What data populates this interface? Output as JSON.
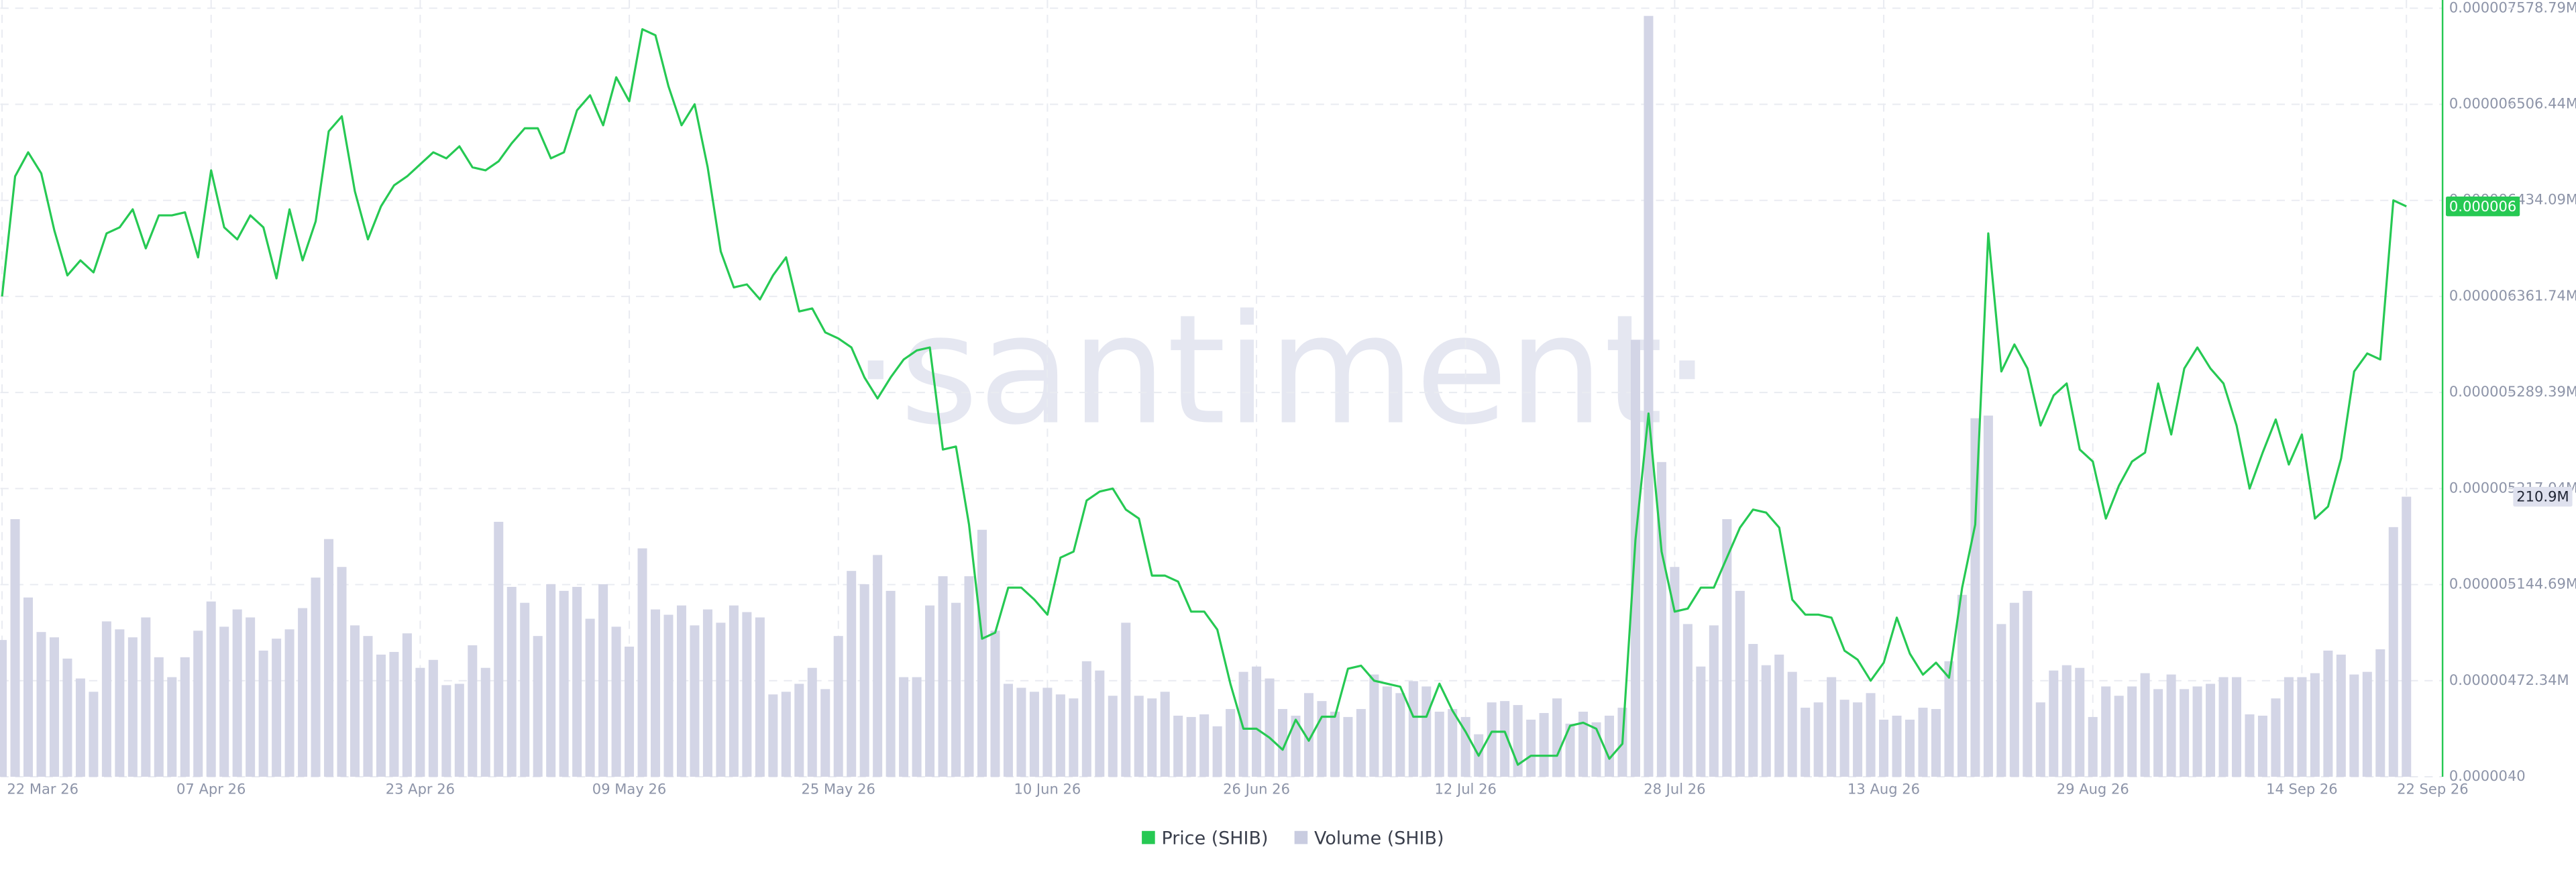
{
  "chart_data": {
    "type": "line",
    "watermark": "·santiment·",
    "x": [
      "2026-03-22",
      "2026-03-23",
      "2026-03-24",
      "2026-03-25",
      "2026-03-26",
      "2026-03-27",
      "2026-03-28",
      "2026-03-29",
      "2026-03-30",
      "2026-03-31",
      "2026-04-01",
      "2026-04-02",
      "2026-04-03",
      "2026-04-04",
      "2026-04-05",
      "2026-04-06",
      "2026-04-07",
      "2026-04-08",
      "2026-04-09",
      "2026-04-10",
      "2026-04-11",
      "2026-04-12",
      "2026-04-13",
      "2026-04-14",
      "2026-04-15",
      "2026-04-16",
      "2026-04-17",
      "2026-04-18",
      "2026-04-19",
      "2026-04-20",
      "2026-04-21",
      "2026-04-22",
      "2026-04-23",
      "2026-04-24",
      "2026-04-25",
      "2026-04-26",
      "2026-04-27",
      "2026-04-28",
      "2026-04-29",
      "2026-04-30",
      "2026-05-01",
      "2026-05-02",
      "2026-05-03",
      "2026-05-04",
      "2026-05-05",
      "2026-05-06",
      "2026-05-07",
      "2026-05-08",
      "2026-05-09",
      "2026-05-10",
      "2026-05-11",
      "2026-05-12",
      "2026-05-13",
      "2026-05-14",
      "2026-05-15",
      "2026-05-16",
      "2026-05-17",
      "2026-05-18",
      "2026-05-19",
      "2026-05-20",
      "2026-05-21",
      "2026-05-22",
      "2026-05-23",
      "2026-05-24",
      "2026-05-25",
      "2026-05-26",
      "2026-05-27",
      "2026-05-28",
      "2026-05-29",
      "2026-05-30",
      "2026-05-31",
      "2026-06-01",
      "2026-06-02",
      "2026-06-03",
      "2026-06-04",
      "2026-06-05",
      "2026-06-06",
      "2026-06-07",
      "2026-06-08",
      "2026-06-09",
      "2026-06-10",
      "2026-06-11",
      "2026-06-12",
      "2026-06-13",
      "2026-06-14",
      "2026-06-15",
      "2026-06-16",
      "2026-06-17",
      "2026-06-18",
      "2026-06-19",
      "2026-06-20",
      "2026-06-21",
      "2026-06-22",
      "2026-06-23",
      "2026-06-24",
      "2026-06-25",
      "2026-06-26",
      "2026-06-27",
      "2026-06-28",
      "2026-06-29",
      "2026-06-30",
      "2026-07-01",
      "2026-07-02",
      "2026-07-03",
      "2026-07-04",
      "2026-07-05",
      "2026-07-06",
      "2026-07-07",
      "2026-07-08",
      "2026-07-09",
      "2026-07-10",
      "2026-07-11",
      "2026-07-12",
      "2026-07-13",
      "2026-07-14",
      "2026-07-15",
      "2026-07-16",
      "2026-07-17",
      "2026-07-18",
      "2026-07-19",
      "2026-07-20",
      "2026-07-21",
      "2026-07-22",
      "2026-07-23",
      "2026-07-24",
      "2026-07-25",
      "2026-07-26",
      "2026-07-27",
      "2026-07-28",
      "2026-07-29",
      "2026-07-30",
      "2026-07-31",
      "2026-08-01",
      "2026-08-02",
      "2026-08-03",
      "2026-08-04",
      "2026-08-05",
      "2026-08-06",
      "2026-08-07",
      "2026-08-08",
      "2026-08-09",
      "2026-08-10",
      "2026-08-11",
      "2026-08-12",
      "2026-08-13",
      "2026-08-14",
      "2026-08-15",
      "2026-08-16",
      "2026-08-17",
      "2026-08-18",
      "2026-08-19",
      "2026-08-20",
      "2026-08-21",
      "2026-08-22",
      "2026-08-23",
      "2026-08-24",
      "2026-08-25",
      "2026-08-26",
      "2026-08-27",
      "2026-08-28",
      "2026-08-29",
      "2026-08-30",
      "2026-08-31",
      "2026-09-01",
      "2026-09-02",
      "2026-09-03",
      "2026-09-04",
      "2026-09-05",
      "2026-09-06",
      "2026-09-07",
      "2026-09-08",
      "2026-09-09",
      "2026-09-10",
      "2026-09-11",
      "2026-09-12",
      "2026-09-13",
      "2026-09-14",
      "2026-09-15",
      "2026-09-16",
      "2026-09-17",
      "2026-09-18",
      "2026-09-19",
      "2026-09-20",
      "2026-09-21",
      "2026-09-22"
    ],
    "xticks": [
      {
        "value": "2026-03-22",
        "label": "22 Mar 26"
      },
      {
        "value": "2026-04-07",
        "label": "07 Apr 26"
      },
      {
        "value": "2026-04-23",
        "label": "23 Apr 26"
      },
      {
        "value": "2026-05-09",
        "label": "09 May 26"
      },
      {
        "value": "2026-05-25",
        "label": "25 May 26"
      },
      {
        "value": "2026-06-10",
        "label": "10 Jun 26"
      },
      {
        "value": "2026-06-26",
        "label": "26 Jun 26"
      },
      {
        "value": "2026-07-12",
        "label": "12 Jul 26"
      },
      {
        "value": "2026-07-28",
        "label": "28 Jul 26"
      },
      {
        "value": "2026-08-13",
        "label": "13 Aug 26"
      },
      {
        "value": "2026-08-29",
        "label": "29 Aug 26"
      },
      {
        "value": "2026-09-14",
        "label": "14 Sep 26"
      },
      {
        "value": "2026-09-22",
        "label": "22 Sep 26"
      }
    ],
    "ylim": [
      4e-06,
      6.56e-06
    ],
    "yticks": [
      {
        "value": 6.56e-06,
        "label": "0.000007"
      },
      {
        "value": 6.24e-06,
        "label": "0.000006"
      },
      {
        "value": 5.92e-06,
        "label": "0.000006"
      },
      {
        "value": 5.6e-06,
        "label": "0.000006"
      },
      {
        "value": 5.28e-06,
        "label": "0.000005"
      },
      {
        "value": 4.96e-06,
        "label": "0.000005"
      },
      {
        "value": 4.64e-06,
        "label": "0.000005"
      },
      {
        "value": 4.32e-06,
        "label": "0.000004"
      },
      {
        "value": 4e-06,
        "label": "0.000004"
      }
    ],
    "y2lim": [
      0,
      578790000
    ],
    "y2ticks": [
      {
        "value": 578790000,
        "label": "578.79M"
      },
      {
        "value": 506440000,
        "label": "506.44M"
      },
      {
        "value": 434090000,
        "label": "434.09M"
      },
      {
        "value": 361740000,
        "label": "361.74M"
      },
      {
        "value": 289390000,
        "label": "289.39M"
      },
      {
        "value": 217040000,
        "label": "217.04M"
      },
      {
        "value": 144690000,
        "label": "144.69M"
      },
      {
        "value": 72340000,
        "label": "72.34M"
      },
      0
    ],
    "grid": true,
    "legend": "bottom",
    "series": [
      {
        "name": "Price (SHIB)",
        "color": "#26c953",
        "last_value_label": "0.000006",
        "values": [
          5.6e-06,
          6e-06,
          6.08e-06,
          6.01e-06,
          5.82e-06,
          5.67e-06,
          5.72e-06,
          5.68e-06,
          5.81e-06,
          5.83e-06,
          5.89e-06,
          5.76e-06,
          5.87e-06,
          5.87e-06,
          5.88e-06,
          5.73e-06,
          6.02e-06,
          5.83e-06,
          5.79e-06,
          5.87e-06,
          5.83e-06,
          5.66e-06,
          5.89e-06,
          5.72e-06,
          5.85e-06,
          6.15e-06,
          6.2e-06,
          5.95e-06,
          5.79e-06,
          5.9e-06,
          5.97e-06,
          6e-06,
          6.04e-06,
          6.08e-06,
          6.06e-06,
          6.1e-06,
          6.03e-06,
          6.02e-06,
          6.05e-06,
          6.11e-06,
          6.16e-06,
          6.16e-06,
          6.06e-06,
          6.08e-06,
          6.22e-06,
          6.27e-06,
          6.17e-06,
          6.33e-06,
          6.25e-06,
          6.49e-06,
          6.47e-06,
          6.3e-06,
          6.17e-06,
          6.24e-06,
          6.03e-06,
          5.75e-06,
          5.63e-06,
          5.64e-06,
          5.59e-06,
          5.67e-06,
          5.73e-06,
          5.55e-06,
          5.56e-06,
          5.48e-06,
          5.46e-06,
          5.43e-06,
          5.33e-06,
          5.26e-06,
          5.33e-06,
          5.39e-06,
          5.42e-06,
          5.43e-06,
          5.09e-06,
          5.1e-06,
          4.84e-06,
          4.46e-06,
          4.48e-06,
          4.63e-06,
          4.63e-06,
          4.59e-06,
          4.54e-06,
          4.73e-06,
          4.75e-06,
          4.92e-06,
          4.95e-06,
          4.96e-06,
          4.89e-06,
          4.86e-06,
          4.67e-06,
          4.67e-06,
          4.65e-06,
          4.55e-06,
          4.55e-06,
          4.49e-06,
          4.31e-06,
          4.16e-06,
          4.16e-06,
          4.13e-06,
          4.09e-06,
          4.19e-06,
          4.12e-06,
          4.2e-06,
          4.2e-06,
          4.36e-06,
          4.37e-06,
          4.32e-06,
          4.31e-06,
          4.3e-06,
          4.2e-06,
          4.2e-06,
          4.31e-06,
          4.22e-06,
          4.15e-06,
          4.07e-06,
          4.15e-06,
          4.15e-06,
          4.04e-06,
          4.07e-06,
          4.07e-06,
          4.07e-06,
          4.17e-06,
          4.18e-06,
          4.16e-06,
          4.06e-06,
          4.11e-06,
          4.79e-06,
          5.21e-06,
          4.75e-06,
          4.55e-06,
          4.56e-06,
          4.63e-06,
          4.63e-06,
          4.73e-06,
          4.83e-06,
          4.89e-06,
          4.88e-06,
          4.83e-06,
          4.59e-06,
          4.54e-06,
          4.54e-06,
          4.53e-06,
          4.42e-06,
          4.39e-06,
          4.32e-06,
          4.38e-06,
          4.53e-06,
          4.41e-06,
          4.34e-06,
          4.38e-06,
          4.33e-06,
          4.63e-06,
          4.84e-06,
          5.81e-06,
          5.35e-06,
          5.44e-06,
          5.36e-06,
          5.17e-06,
          5.27e-06,
          5.31e-06,
          5.09e-06,
          5.05e-06,
          4.86e-06,
          4.97e-06,
          5.05e-06,
          5.08e-06,
          5.31e-06,
          5.14e-06,
          5.36e-06,
          5.43e-06,
          5.36e-06,
          5.31e-06,
          5.17e-06,
          4.96e-06,
          5.08e-06,
          5.19e-06,
          5.04e-06,
          5.14e-06,
          4.86e-06,
          4.9e-06,
          5.06e-06,
          5.35e-06,
          5.41e-06,
          5.39e-06,
          5.92e-06,
          5.9e-06
        ]
      },
      {
        "name": "Volume (SHIB)",
        "color": "#d3d5e6",
        "type": "bar",
        "axis": "y2",
        "last_value_label": "210.9M",
        "values": [
          103000000.0,
          194000000.0,
          135000000.0,
          109000000.0,
          105000000.0,
          89000000.0,
          74000000.0,
          64000000.0,
          117000000.0,
          111000000.0,
          105000000.0,
          120000000.0,
          90000000.0,
          75000000.0,
          90000000.0,
          110000000.0,
          132000000.0,
          113000000.0,
          126000000.0,
          120000000.0,
          95000000.0,
          104000000.0,
          111000000.0,
          127000000.0,
          150000000.0,
          179000000.0,
          158000000.0,
          114000000.0,
          106000000.0,
          92000000.0,
          94000000.0,
          108000000.0,
          82000000.0,
          88000000.0,
          69000000.0,
          70000000.0,
          99000000.0,
          82000000.0,
          192000000.0,
          143000000.0,
          131000000.0,
          106000000.0,
          145000000.0,
          140000000.0,
          143000000.0,
          119000000.0,
          145000000.0,
          113000000.0,
          98000000.0,
          172000000.0,
          126000000.0,
          122000000.0,
          129000000.0,
          114000000.0,
          126000000.0,
          116000000.0,
          129000000.0,
          124000000.0,
          120000000.0,
          62000000.0,
          64000000.0,
          70000000.0,
          82000000.0,
          66000000.0,
          106000000.0,
          155000000.0,
          145000000.0,
          167000000.0,
          140000000.0,
          75000000.0,
          75000000.0,
          129000000.0,
          151000000.0,
          131000000.0,
          151000000.0,
          186000000.0,
          110000000.0,
          70000000.0,
          67000000.0,
          64000000.0,
          67000000.0,
          62000000.0,
          59000000.0,
          87000000.0,
          80000000.0,
          61000000.0,
          116000000.0,
          61000000.0,
          59000000.0,
          64000000.0,
          46000000.0,
          45000000.0,
          47000000.0,
          38000000.0,
          51000000.0,
          79000000.0,
          83000000.0,
          74000000.0,
          51000000.0,
          46000000.0,
          63000000.0,
          57000000.0,
          49000000.0,
          45000000.0,
          51000000.0,
          77000000.0,
          68000000.0,
          63000000.0,
          72000000.0,
          68000000.0,
          49000000.0,
          51000000.0,
          45000000.0,
          32000000.0,
          56000000.0,
          57000000.0,
          54000000.0,
          43000000.0,
          48000000.0,
          59000000.0,
          40000000.0,
          49000000.0,
          41000000.0,
          46000000.0,
          52000000.0,
          329000000.0,
          573000000.0,
          237000000.0,
          158000000.0,
          115000000.0,
          83000000.0,
          114000000.0,
          194000000.0,
          140000000.0,
          100000000.0,
          84000000.0,
          92000000.0,
          79000000.0,
          52000000.0,
          56000000.0,
          75000000.0,
          58000000.0,
          56000000.0,
          63000000.0,
          43000000.0,
          46000000.0,
          43000000.0,
          52000000.0,
          51000000.0,
          87000000.0,
          137000000.0,
          270000000.0,
          272000000.0,
          115000000.0,
          131000000.0,
          140000000.0,
          56000000.0,
          80000000.0,
          84000000.0,
          82000000.0,
          45000000.0,
          68000000.0,
          61000000.0,
          68000000.0,
          78000000.0,
          66000000.0,
          77000000.0,
          66000000.0,
          68000000.0,
          70000000.0,
          75000000.0,
          75000000.0,
          47000000.0,
          46000000.0,
          59000000.0,
          75000000.0,
          75000000.0,
          78000000.0,
          95000000.0,
          92000000.0,
          77000000.0,
          79000000.0,
          96000000.0,
          188000000.0,
          210900000.0
        ]
      }
    ]
  }
}
